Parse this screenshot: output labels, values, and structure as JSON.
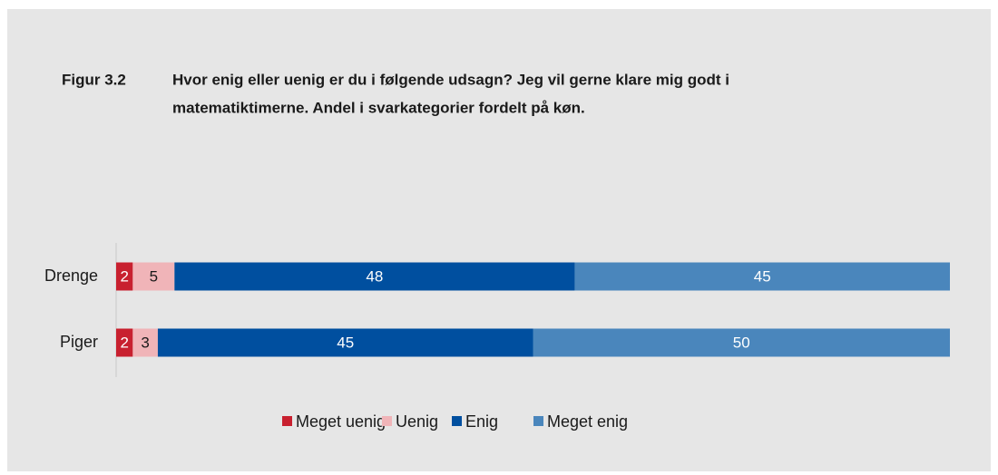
{
  "chart_data": {
    "type": "stacked-bar-horizontal",
    "figure_label": "Figur 3.2",
    "title_lines": [
      "Hvor enig eller uenig er du i følgende udsagn? Jeg vil gerne klare mig godt i",
      "matematiktimerne. Andel i svarkategorier fordelt på køn."
    ],
    "categories": [
      "Drenge",
      "Piger"
    ],
    "xlim": [
      0,
      100
    ],
    "series": [
      {
        "name": "Meget uenig",
        "color": "#c8202f",
        "values": [
          2,
          2
        ]
      },
      {
        "name": "Uenig",
        "color": "#f0b4b8",
        "values": [
          5,
          3
        ]
      },
      {
        "name": "Enig",
        "color": "#004f9f",
        "values": [
          48,
          45
        ]
      },
      {
        "name": "Meget enig",
        "color": "#4a86bc",
        "values": [
          45,
          50
        ]
      }
    ],
    "legend": "bottom"
  }
}
